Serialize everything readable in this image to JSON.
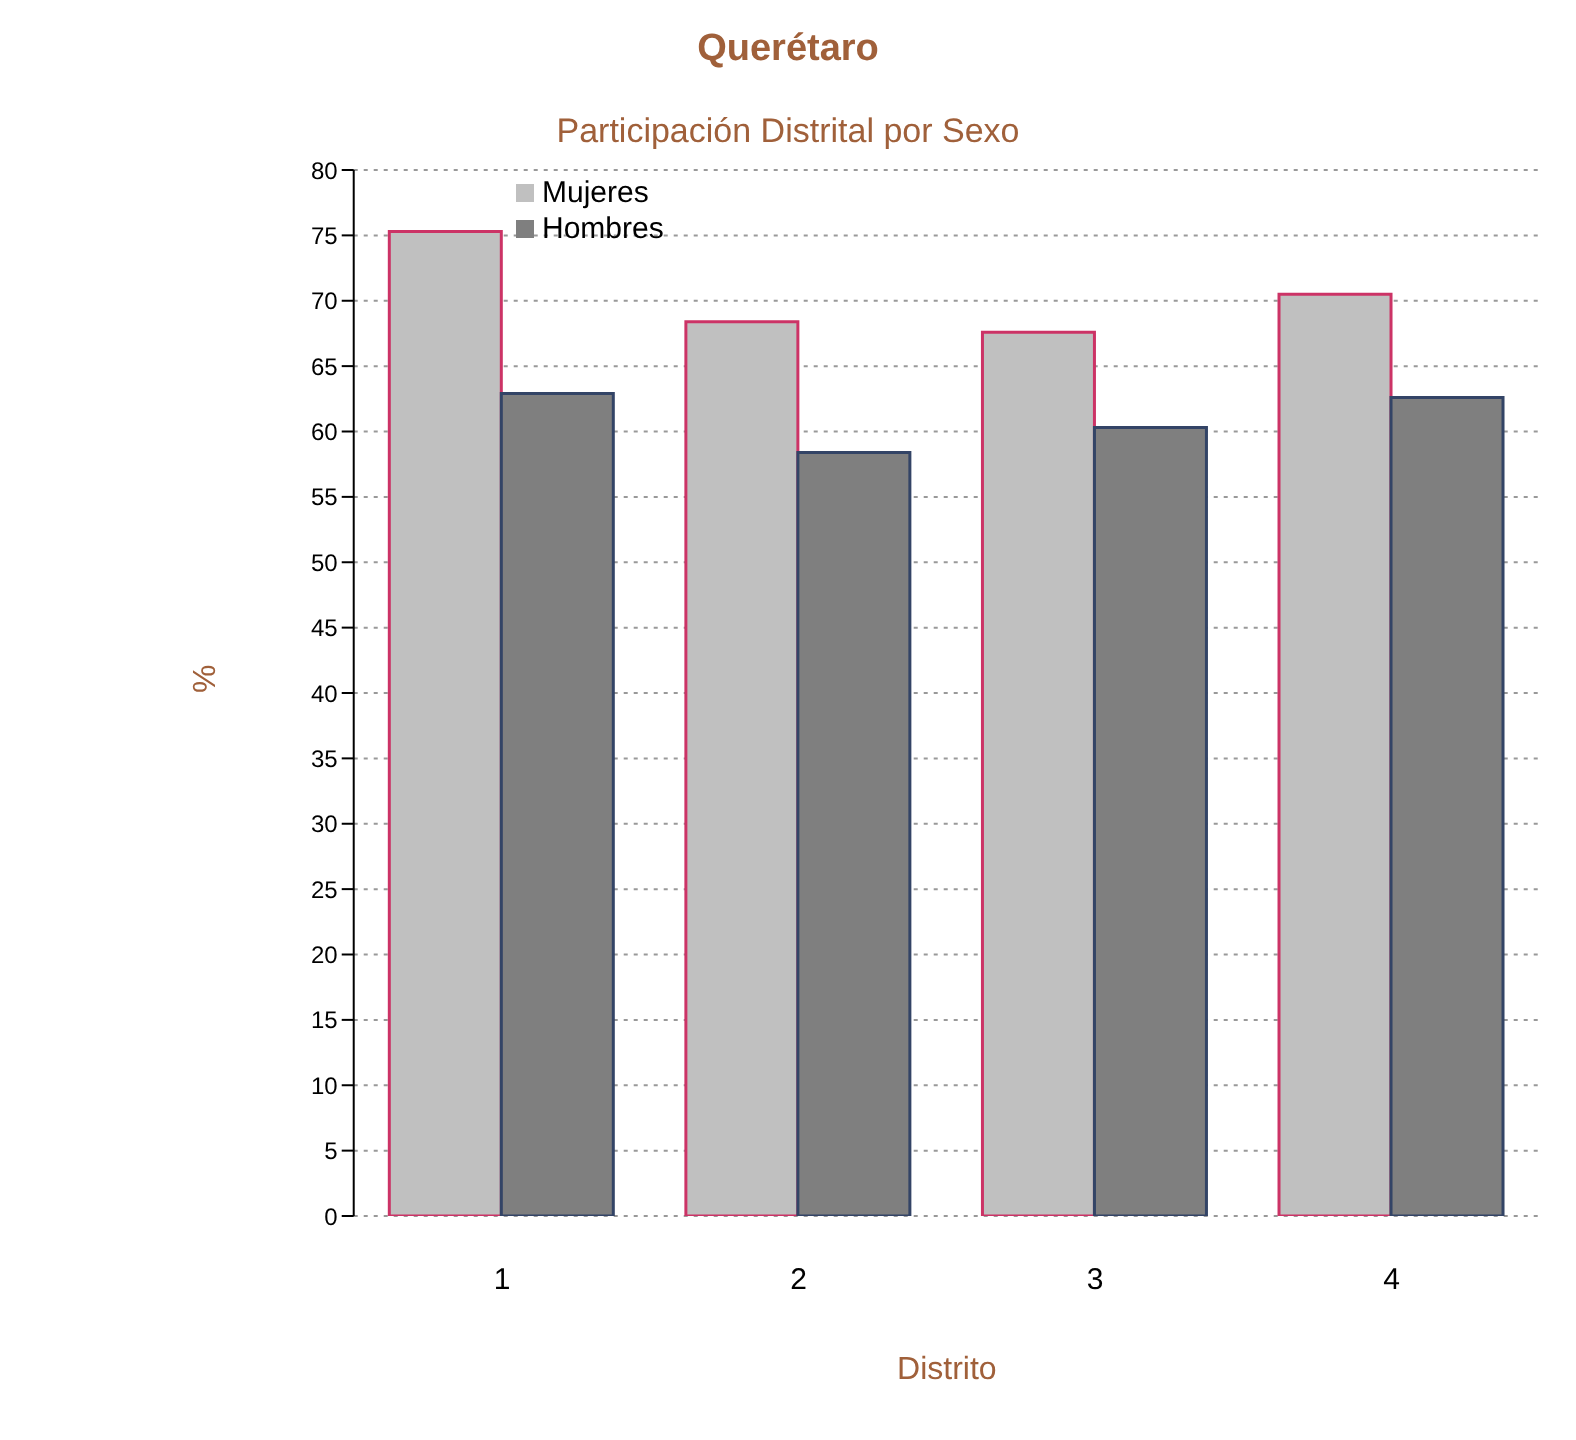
{
  "chart_data": {
    "type": "bar",
    "title": "Querétaro",
    "subtitle": "Participación Distrital por Sexo",
    "xlabel": "Distrito",
    "ylabel": "%",
    "categories": [
      "1",
      "2",
      "3",
      "4"
    ],
    "series": [
      {
        "name": "Mujeres",
        "color": "#c0c0c0",
        "values": [
          75.3,
          68.4,
          67.6,
          70.5
        ]
      },
      {
        "name": "Hombres",
        "color": "#7f7f7f",
        "values": [
          62.9,
          58.4,
          60.3,
          62.6
        ]
      }
    ],
    "ylim": [
      0,
      80
    ],
    "yticks": [
      0,
      5,
      10,
      15,
      20,
      25,
      30,
      35,
      40,
      45,
      50,
      55,
      60,
      65,
      70,
      75,
      80
    ],
    "grid": "y",
    "legend": "top left"
  }
}
